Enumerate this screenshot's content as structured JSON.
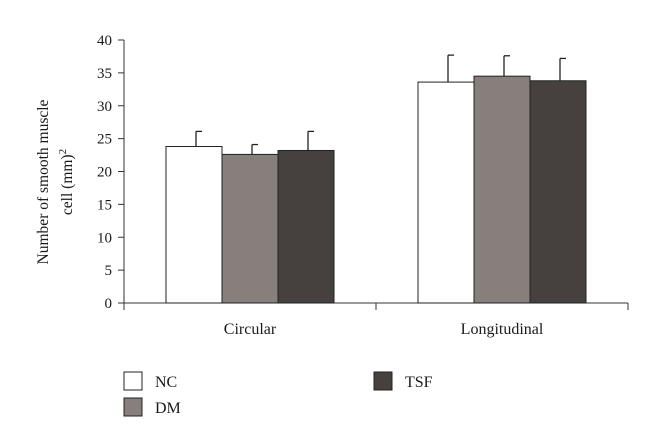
{
  "chart_data": {
    "type": "bar",
    "title": "",
    "ylabel_line1": "Number of smooth muscle",
    "ylabel_line2": "cell (mm)",
    "ylabel_superscript": "2",
    "xlabel": "",
    "ylim": [
      0,
      40
    ],
    "yticks": [
      0,
      5,
      10,
      15,
      20,
      25,
      30,
      35,
      40
    ],
    "categories": [
      "Circular",
      "Longitudinal"
    ],
    "series": [
      {
        "name": "NC",
        "color": "#ffffff",
        "values": [
          23.8,
          33.6
        ],
        "errors": [
          2.3,
          4.1
        ]
      },
      {
        "name": "DM",
        "color": "#877f7b",
        "values": [
          22.6,
          34.5
        ],
        "errors": [
          1.5,
          3.1
        ]
      },
      {
        "name": "TSF",
        "color": "#46413e",
        "values": [
          23.2,
          33.8
        ],
        "errors": [
          2.9,
          3.4
        ]
      }
    ],
    "grid": false,
    "legend_position": "bottom-left"
  }
}
